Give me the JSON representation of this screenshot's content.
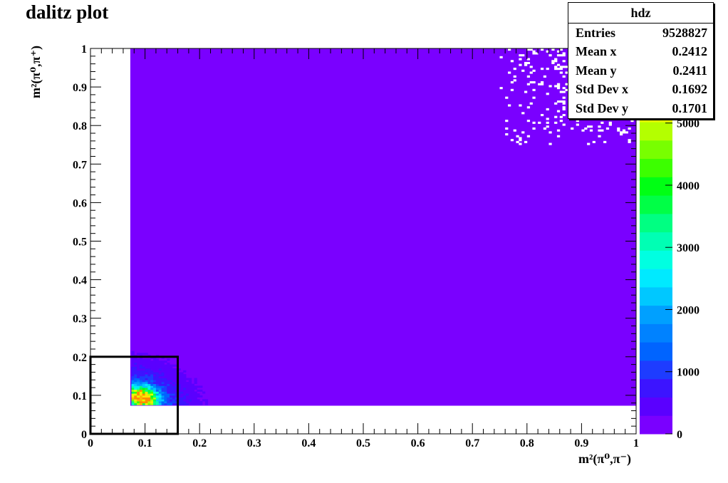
{
  "chart_data": {
    "type": "heatmap",
    "title": "dalitz plot",
    "xlabel": "m²(π⁰,π⁻)",
    "ylabel": "m²(π⁰,π⁺)",
    "xlim": [
      0,
      1
    ],
    "ylim": [
      0,
      1
    ],
    "x_ticks": [
      "0",
      "0.1",
      "0.2",
      "0.3",
      "0.4",
      "0.5",
      "0.6",
      "0.7",
      "0.8",
      "0.9",
      "1"
    ],
    "y_ticks": [
      "0",
      "0.1",
      "0.2",
      "0.3",
      "0.4",
      "0.5",
      "0.6",
      "0.7",
      "0.8",
      "0.9",
      "1"
    ],
    "z_ticks": [
      "0",
      "1000",
      "2000",
      "3000",
      "4000",
      "5000"
    ],
    "zlim": [
      0,
      6200
    ],
    "colorbar_colors": [
      "#7a00ff",
      "#5a00ff",
      "#3c14ff",
      "#1e3cff",
      "#0064ff",
      "#0082ff",
      "#00a0ff",
      "#00c8ff",
      "#00eaff",
      "#00ffe1",
      "#00ffb4",
      "#00ff82",
      "#00ff46",
      "#00ff14",
      "#3cff00",
      "#78ff00",
      "#b4ff00",
      "#e6ff00",
      "#ffe600",
      "#ffb400",
      "#ff8c00"
    ],
    "background_color": "#7a00ff",
    "grid": false,
    "distribution": {
      "kinematic_min": 0.073,
      "populated_region": "x from 0.073 to 1, y from 0.073 to 1, bounded region (empty strips along the left and bottom axes)",
      "peak": {
        "x": 0.095,
        "y": 0.095,
        "max_count": 6200
      },
      "high_density_blob": {
        "x_range": [
          0.073,
          0.33
        ],
        "y_range": [
          0.073,
          0.35
        ]
      },
      "sparse_corner": {
        "x_range": [
          0.75,
          1.0
        ],
        "y_range": [
          0.75,
          1.0
        ]
      }
    },
    "annotation_box": {
      "x_range": [
        0,
        0.16
      ],
      "y_range": [
        0,
        0.2
      ]
    },
    "stats_box": {
      "title": "hdz",
      "rows": [
        {
          "label": "Entries",
          "value": "9528827"
        },
        {
          "label": "Mean x",
          "value": "0.2412"
        },
        {
          "label": "Mean y",
          "value": "0.2411"
        },
        {
          "label": "Std Dev x",
          "value": "0.1692"
        },
        {
          "label": "Std Dev y",
          "value": "0.1701"
        }
      ]
    }
  }
}
